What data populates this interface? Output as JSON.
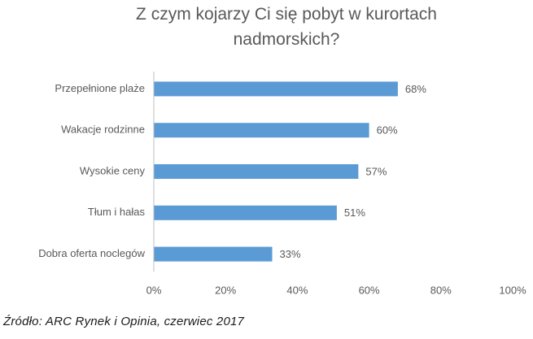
{
  "chart_data": {
    "type": "barh",
    "title": "Z czym kojarzy Ci się pobyt w kurortach nadmorskich?",
    "categories": [
      "Przepełnione plaże",
      "Wakacje rodzinne",
      "Wysokie ceny",
      "Tłum i hałas",
      "Dobra oferta noclegów"
    ],
    "values": [
      68,
      60,
      57,
      51,
      33
    ],
    "value_labels": [
      "68%",
      "60%",
      "57%",
      "51%",
      "33%"
    ],
    "color": "#5b9bd5",
    "xlim": [
      0,
      100
    ],
    "xticks": [
      {
        "value": 0,
        "label": "0%"
      },
      {
        "value": 20,
        "label": "20%"
      },
      {
        "value": 40,
        "label": "40%"
      },
      {
        "value": 60,
        "label": "60%"
      },
      {
        "value": 80,
        "label": "80%"
      },
      {
        "value": 100,
        "label": "100%"
      }
    ],
    "grid": false,
    "source": "Źródło: ARC Rynek i Opinia, czerwiec 2017"
  }
}
